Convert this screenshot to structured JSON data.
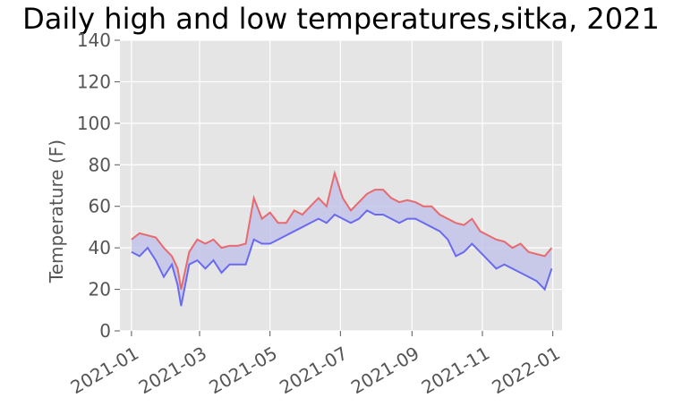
{
  "chart_data": {
    "type": "line",
    "title": "Daily high and low temperatures,sitka, 2021",
    "xlabel": "",
    "ylabel": "Temperature (F)",
    "ylim": [
      0,
      140
    ],
    "yticks": [
      0,
      20,
      40,
      60,
      80,
      100,
      120,
      140
    ],
    "xlim": [
      "2020-12-22",
      "2022-01-09"
    ],
    "xticks": [
      "2021-01",
      "2021-03",
      "2021-05",
      "2021-07",
      "2021-09",
      "2021-11",
      "2022-01"
    ],
    "grid": true,
    "legend": "none",
    "fill_between": true,
    "colors": {
      "background": "#e5e5e5",
      "grid": "#ffffff",
      "high": "#e8696e",
      "low": "#6a6af0",
      "fill": "#c0c0ea"
    },
    "series": [
      {
        "name": "high",
        "x": [
          "2021-01-01",
          "2021-01-08",
          "2021-01-15",
          "2021-01-22",
          "2021-01-29",
          "2021-02-05",
          "2021-02-10",
          "2021-02-13",
          "2021-02-20",
          "2021-02-27",
          "2021-03-06",
          "2021-03-13",
          "2021-03-20",
          "2021-03-27",
          "2021-04-03",
          "2021-04-10",
          "2021-04-17",
          "2021-04-24",
          "2021-05-01",
          "2021-05-08",
          "2021-05-15",
          "2021-05-22",
          "2021-05-29",
          "2021-06-05",
          "2021-06-12",
          "2021-06-19",
          "2021-06-26",
          "2021-07-03",
          "2021-07-10",
          "2021-07-17",
          "2021-07-24",
          "2021-07-31",
          "2021-08-07",
          "2021-08-14",
          "2021-08-21",
          "2021-08-28",
          "2021-09-04",
          "2021-09-11",
          "2021-09-18",
          "2021-09-25",
          "2021-10-02",
          "2021-10-09",
          "2021-10-16",
          "2021-10-23",
          "2021-10-30",
          "2021-11-06",
          "2021-11-13",
          "2021-11-20",
          "2021-11-27",
          "2021-12-04",
          "2021-12-11",
          "2021-12-18",
          "2021-12-25",
          "2021-12-31"
        ],
        "values": [
          44,
          47,
          46,
          45,
          40,
          36,
          30,
          20,
          38,
          44,
          42,
          44,
          40,
          41,
          41,
          42,
          64,
          54,
          57,
          52,
          52,
          58,
          56,
          60,
          64,
          60,
          76,
          64,
          58,
          62,
          66,
          68,
          68,
          64,
          62,
          63,
          62,
          60,
          60,
          56,
          54,
          52,
          51,
          54,
          48,
          46,
          44,
          43,
          40,
          42,
          38,
          37,
          36,
          40
        ]
      },
      {
        "name": "low",
        "x": [
          "2021-01-01",
          "2021-01-08",
          "2021-01-15",
          "2021-01-22",
          "2021-01-29",
          "2021-02-05",
          "2021-02-10",
          "2021-02-13",
          "2021-02-20",
          "2021-02-27",
          "2021-03-06",
          "2021-03-13",
          "2021-03-20",
          "2021-03-27",
          "2021-04-03",
          "2021-04-10",
          "2021-04-17",
          "2021-04-24",
          "2021-05-01",
          "2021-05-08",
          "2021-05-15",
          "2021-05-22",
          "2021-05-29",
          "2021-06-05",
          "2021-06-12",
          "2021-06-19",
          "2021-06-26",
          "2021-07-03",
          "2021-07-10",
          "2021-07-17",
          "2021-07-24",
          "2021-07-31",
          "2021-08-07",
          "2021-08-14",
          "2021-08-21",
          "2021-08-28",
          "2021-09-04",
          "2021-09-11",
          "2021-09-18",
          "2021-09-25",
          "2021-10-02",
          "2021-10-09",
          "2021-10-16",
          "2021-10-23",
          "2021-10-30",
          "2021-11-06",
          "2021-11-13",
          "2021-11-20",
          "2021-11-27",
          "2021-12-04",
          "2021-12-11",
          "2021-12-18",
          "2021-12-25",
          "2021-12-31"
        ],
        "values": [
          38,
          36,
          40,
          34,
          26,
          32,
          22,
          12,
          32,
          34,
          30,
          34,
          28,
          32,
          32,
          32,
          44,
          42,
          42,
          44,
          46,
          48,
          50,
          52,
          54,
          52,
          56,
          54,
          52,
          54,
          58,
          56,
          56,
          54,
          52,
          54,
          54,
          52,
          50,
          48,
          44,
          36,
          38,
          42,
          38,
          34,
          30,
          32,
          30,
          28,
          26,
          24,
          20,
          30
        ]
      }
    ]
  }
}
